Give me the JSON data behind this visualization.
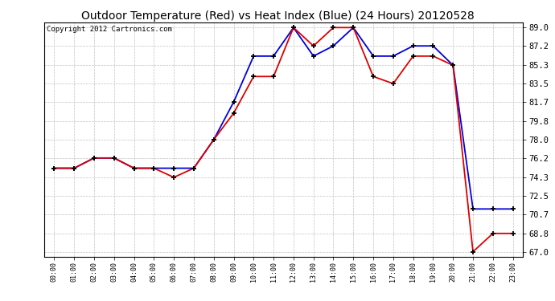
{
  "title": "Outdoor Temperature (Red) vs Heat Index (Blue) (24 Hours) 20120528",
  "copyright": "Copyright 2012 Cartronics.com",
  "hours": [
    "00:00",
    "01:00",
    "02:00",
    "03:00",
    "04:00",
    "05:00",
    "06:00",
    "07:00",
    "08:00",
    "09:00",
    "10:00",
    "11:00",
    "12:00",
    "13:00",
    "14:00",
    "15:00",
    "16:00",
    "17:00",
    "18:00",
    "19:00",
    "20:00",
    "21:00",
    "22:00",
    "23:00"
  ],
  "red_temp": [
    75.2,
    75.2,
    76.2,
    76.2,
    75.2,
    75.2,
    74.3,
    75.2,
    78.0,
    80.6,
    84.2,
    84.2,
    89.0,
    87.2,
    89.0,
    89.0,
    84.2,
    83.5,
    86.2,
    86.2,
    85.3,
    67.0,
    68.8,
    68.8
  ],
  "blue_temp": [
    75.2,
    75.2,
    76.2,
    76.2,
    75.2,
    75.2,
    75.2,
    75.2,
    78.0,
    81.7,
    86.2,
    86.2,
    89.0,
    86.2,
    87.2,
    89.0,
    86.2,
    86.2,
    87.2,
    87.2,
    85.3,
    71.2,
    71.2,
    71.2
  ],
  "ylim_min": 66.5,
  "ylim_max": 89.5,
  "yticks": [
    67.0,
    68.8,
    70.7,
    72.5,
    74.3,
    76.2,
    78.0,
    79.8,
    81.7,
    83.5,
    85.3,
    87.2,
    89.0
  ],
  "red_color": "#dd0000",
  "blue_color": "#0000dd",
  "background_color": "#ffffff",
  "grid_color": "#bbbbbb",
  "title_fontsize": 10,
  "copyright_fontsize": 6.5
}
